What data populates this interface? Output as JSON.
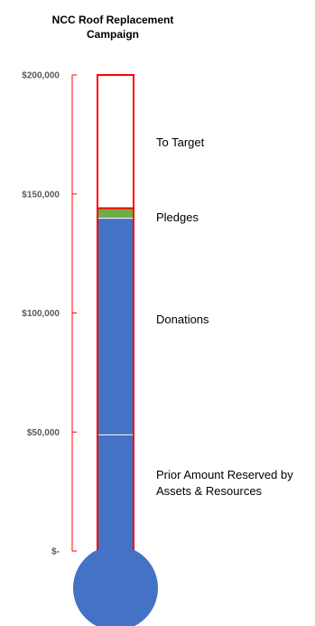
{
  "chart_data": {
    "type": "bar",
    "title_line1": "NCC Roof Replacement",
    "title_line2": "Campaign",
    "ylim": [
      0,
      200000
    ],
    "yticks": [
      {
        "value": 0,
        "label": "$-"
      },
      {
        "value": 50000,
        "label": "$50,000"
      },
      {
        "value": 100000,
        "label": "$100,000"
      },
      {
        "value": 150000,
        "label": "$150,000"
      },
      {
        "value": 200000,
        "label": "$200,000"
      }
    ],
    "target": 200000,
    "series": [
      {
        "name": "Prior Amount Reserved by Assets & Resources",
        "value": 49000,
        "color": "#4472c4"
      },
      {
        "name": "Donations",
        "value": 91000,
        "color": "#4472c4"
      },
      {
        "name": "Pledges",
        "value": 4000,
        "color": "#70ad47"
      },
      {
        "name": "To Target",
        "value": 56000,
        "color": "#ffffff"
      }
    ],
    "annotations": {
      "to_target": "To Target",
      "pledges": "Pledges",
      "donations": "Donations",
      "prior_line1": "Prior Amount Reserved by",
      "prior_line2": "Assets & Resources"
    },
    "colors": {
      "outline": "#ff0000",
      "bulb": "#4472c4",
      "axis": "#ff0000",
      "separator": "#ffffff"
    }
  }
}
